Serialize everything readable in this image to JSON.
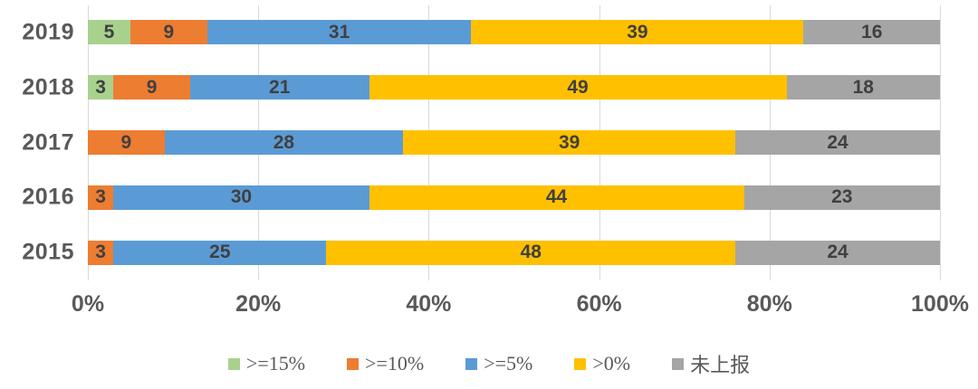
{
  "colors": {
    "background": "#ffffff",
    "gridline": "#D9D9D9",
    "axis_text": "#595959",
    "data_label": "#404040"
  },
  "chart_data": {
    "type": "bar",
    "orientation": "horizontal",
    "stacked": true,
    "title": "",
    "xlabel": "",
    "ylabel": "",
    "xlim": [
      0,
      100
    ],
    "grid": true,
    "legend_position": "bottom",
    "categories": [
      "2019",
      "2018",
      "2017",
      "2016",
      "2015"
    ],
    "x_ticks": [
      "0%",
      "20%",
      "40%",
      "60%",
      "80%",
      "100%"
    ],
    "x_tick_values": [
      0,
      20,
      40,
      60,
      80,
      100
    ],
    "series": [
      {
        "name": ">=15%",
        "color": "#A9D18E",
        "values": [
          5,
          3,
          0,
          0,
          0
        ]
      },
      {
        "name": ">=10%",
        "color": "#ED7D31",
        "values": [
          9,
          9,
          9,
          3,
          3
        ]
      },
      {
        "name": ">=5%",
        "color": "#5B9BD5",
        "values": [
          31,
          21,
          28,
          30,
          25
        ]
      },
      {
        "name": ">0%",
        "color": "#FFC000",
        "values": [
          39,
          49,
          39,
          44,
          48
        ]
      },
      {
        "name": "未上报",
        "color": "#A5A5A5",
        "values": [
          16,
          18,
          24,
          23,
          24
        ]
      }
    ]
  }
}
